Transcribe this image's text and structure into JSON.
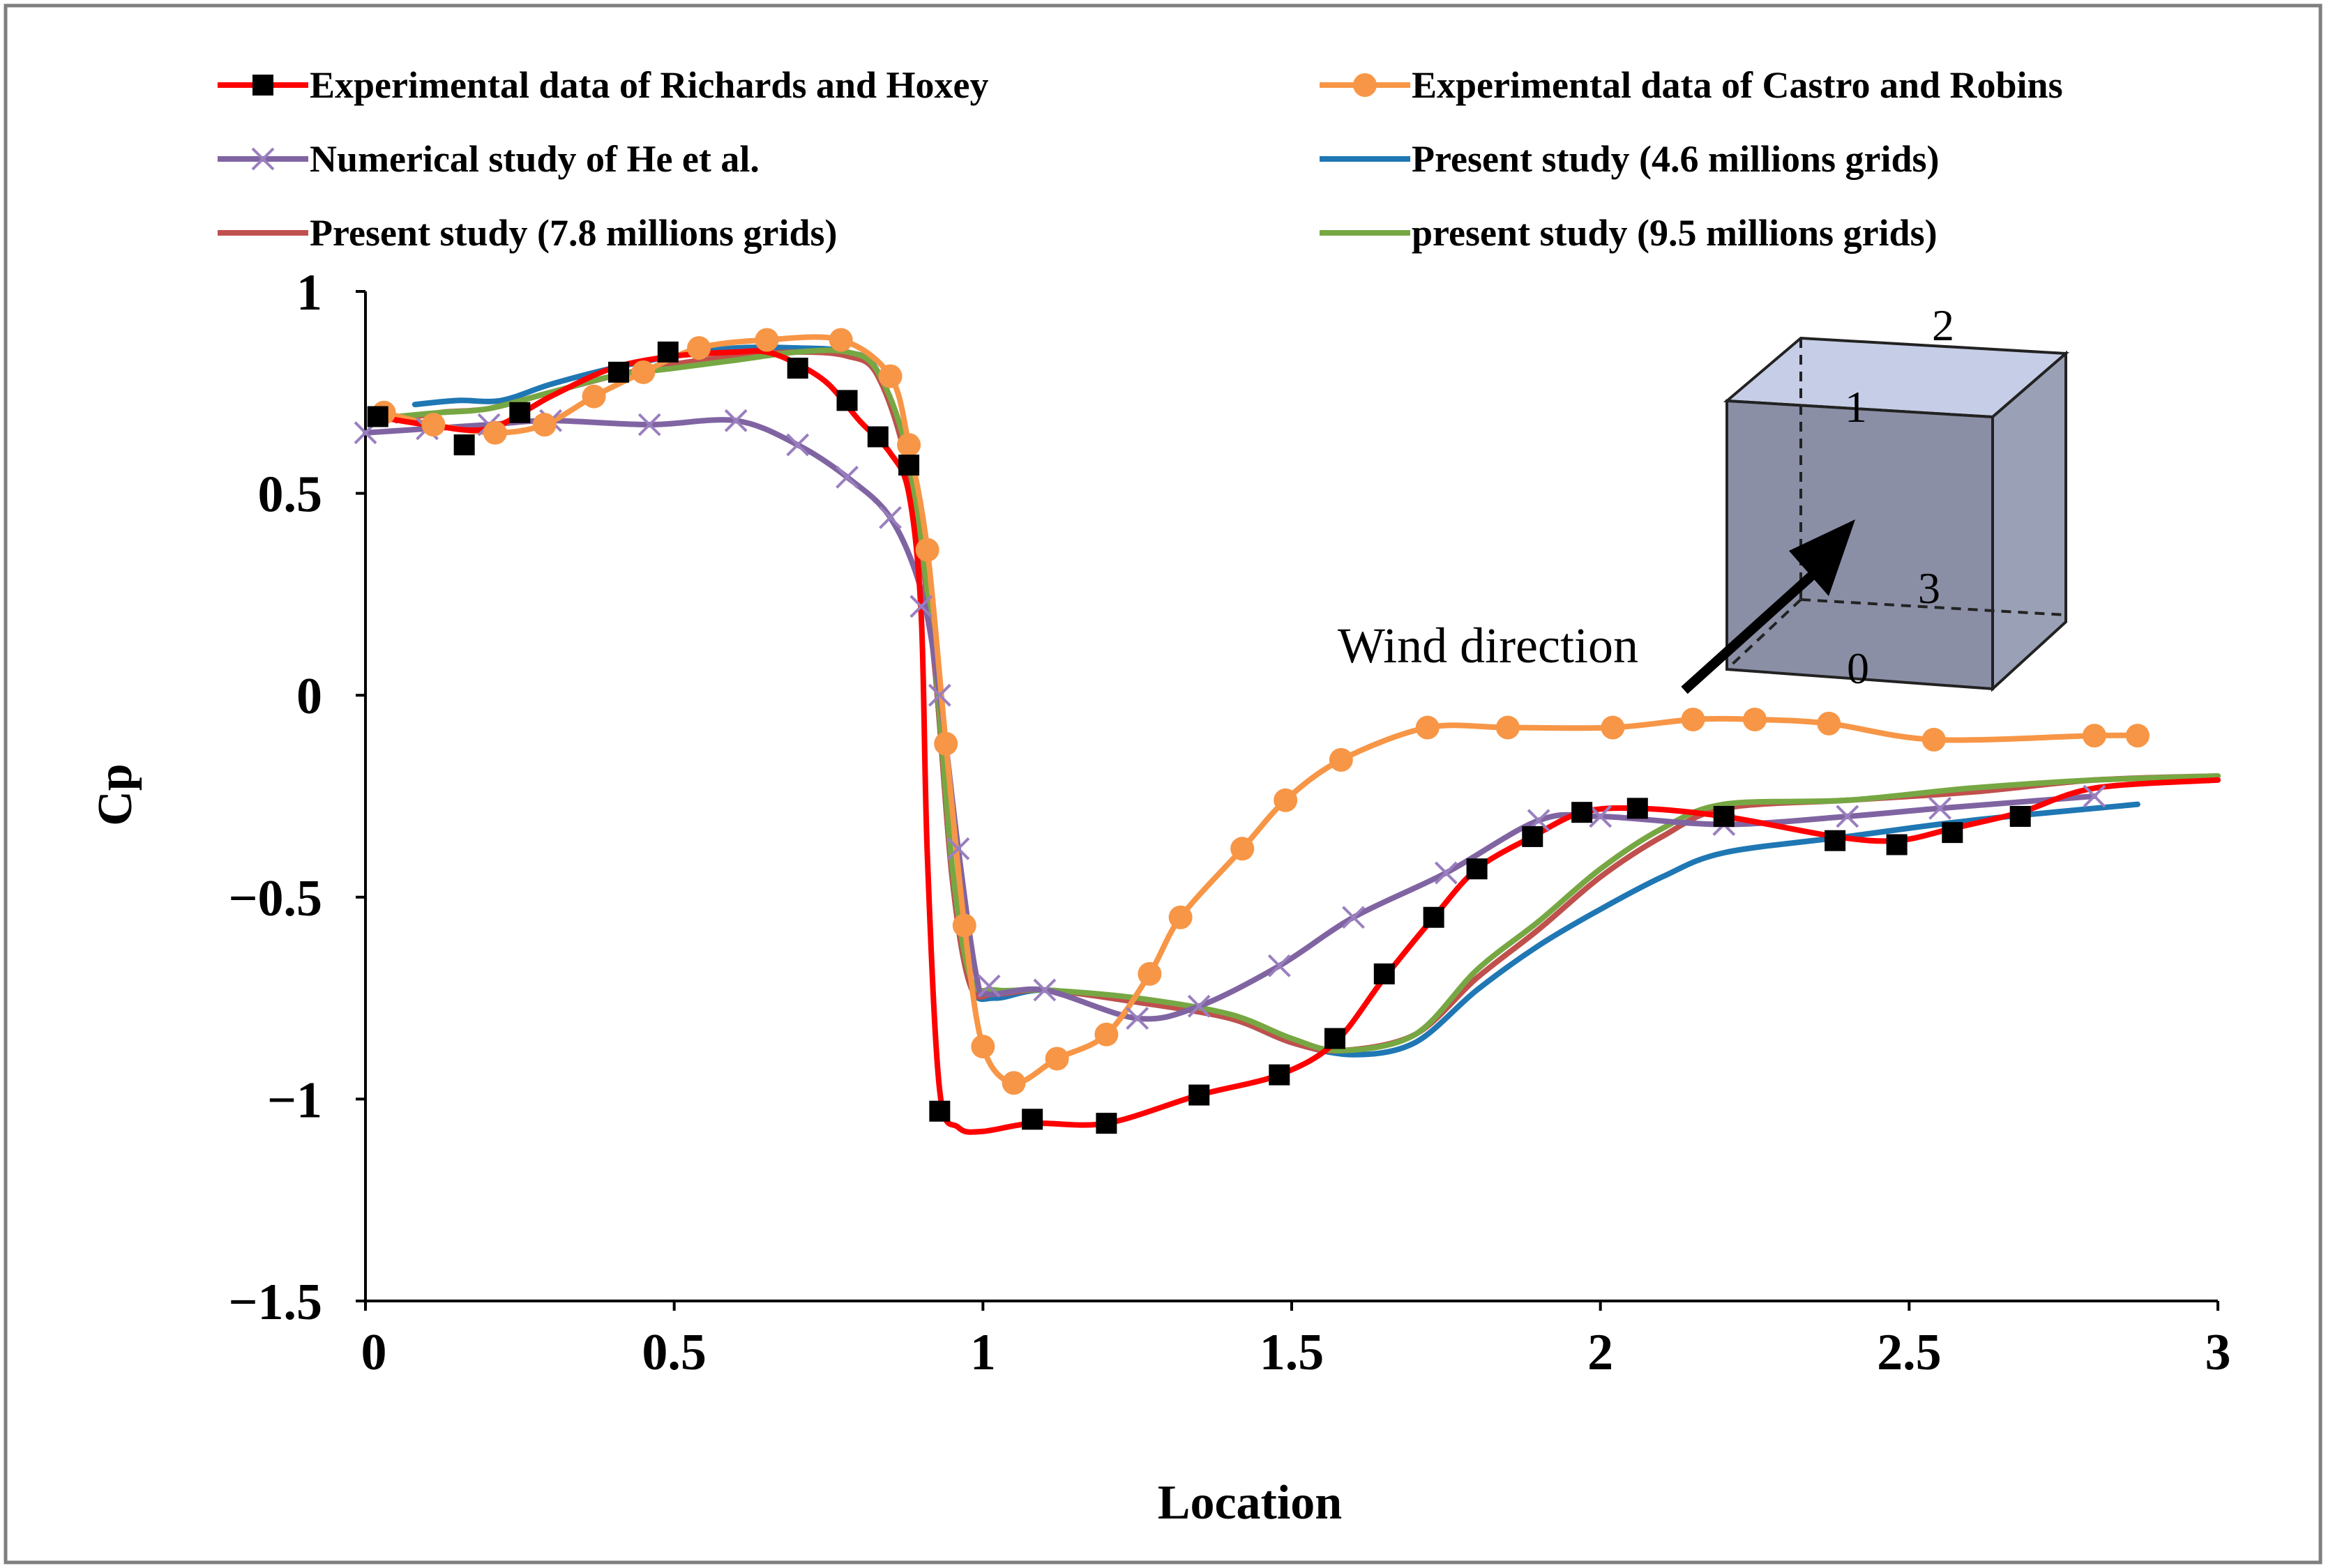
{
  "chart_data": {
    "type": "line",
    "xlabel": "Location",
    "ylabel": "Cp",
    "xlim": [
      0,
      3
    ],
    "ylim": [
      -1.5,
      1
    ],
    "xticks": [
      0,
      0.5,
      1,
      1.5,
      2,
      2.5,
      3
    ],
    "xtick_labels": [
      "0",
      "0.5",
      "1",
      "1.5",
      "2",
      "2.5",
      "3"
    ],
    "yticks": [
      1,
      0.5,
      0,
      -0.5,
      -1,
      -1.5
    ],
    "ytick_labels": [
      "1",
      "0.5",
      "0",
      "−0.5",
      "−1",
      "−1.5"
    ],
    "grid": false,
    "legend_position": "top",
    "annotation": {
      "text": "Wind direction",
      "cube_labels": [
        "2",
        "1",
        "3",
        "0"
      ]
    },
    "series": [
      {
        "name": "Experimental data of Richards and Hoxey",
        "color": "#ff0000",
        "marker": "square",
        "marker_color": "#000000",
        "x": [
          0.02,
          0.16,
          0.25,
          0.41,
          0.49,
          0.7,
          0.78,
          0.83,
          0.88,
          0.93,
          1.08,
          1.2,
          1.35,
          1.48,
          1.57,
          1.65,
          1.73,
          1.8,
          1.89,
          1.97,
          2.06,
          2.2,
          2.38,
          2.48,
          2.57,
          2.68
        ],
        "y": [
          0.69,
          0.62,
          0.7,
          0.8,
          0.85,
          0.81,
          0.73,
          0.64,
          0.57,
          -1.03,
          -1.05,
          -1.06,
          -0.99,
          -0.94,
          -0.85,
          -0.69,
          -0.55,
          -0.43,
          -0.35,
          -0.29,
          -0.28,
          -0.3,
          -0.36,
          -0.37,
          -0.34,
          -0.3
        ],
        "curve_x": [
          0.02,
          0.1,
          0.2,
          0.3,
          0.4,
          0.5,
          0.6,
          0.65,
          0.7,
          0.75,
          0.8,
          0.85,
          0.88,
          0.9,
          0.91,
          0.93,
          0.96,
          1.0,
          1.08,
          1.2,
          1.35,
          1.48,
          1.57,
          1.65,
          1.73,
          1.8,
          1.89,
          1.97,
          2.06,
          2.2,
          2.38,
          2.48,
          2.57,
          2.68,
          2.8,
          3.0
        ],
        "curve_y": [
          0.69,
          0.67,
          0.66,
          0.74,
          0.81,
          0.84,
          0.85,
          0.85,
          0.82,
          0.77,
          0.68,
          0.6,
          0.5,
          0.2,
          -0.4,
          -0.98,
          -1.07,
          -1.08,
          -1.06,
          -1.06,
          -0.99,
          -0.94,
          -0.86,
          -0.7,
          -0.55,
          -0.43,
          -0.35,
          -0.29,
          -0.28,
          -0.3,
          -0.35,
          -0.36,
          -0.33,
          -0.29,
          -0.23,
          -0.21
        ]
      },
      {
        "name": "Experimental data of Castro and Robins",
        "color": "#f79646",
        "marker": "circle",
        "marker_color": "#f79646",
        "x": [
          0.03,
          0.11,
          0.21,
          0.29,
          0.37,
          0.45,
          0.54,
          0.65,
          0.77,
          0.85,
          0.88,
          0.91,
          0.94,
          0.97,
          1.0,
          1.05,
          1.12,
          1.2,
          1.27,
          1.32,
          1.42,
          1.49,
          1.58,
          1.72,
          1.85,
          2.02,
          2.15,
          2.25,
          2.37,
          2.54,
          2.8,
          2.87
        ],
        "y": [
          0.7,
          0.67,
          0.65,
          0.67,
          0.74,
          0.8,
          0.86,
          0.88,
          0.88,
          0.79,
          0.62,
          0.36,
          -0.12,
          -0.57,
          -0.87,
          -0.96,
          -0.9,
          -0.84,
          -0.69,
          -0.55,
          -0.38,
          -0.26,
          -0.16,
          -0.08,
          -0.08,
          -0.08,
          -0.06,
          -0.06,
          -0.07,
          -0.11,
          -0.1,
          -0.1
        ]
      },
      {
        "name": "Numerical study of He et al.",
        "color": "#8064a2",
        "marker": "x",
        "marker_color": "#9a7fbf",
        "x": [
          0.0,
          0.1,
          0.2,
          0.3,
          0.46,
          0.6,
          0.7,
          0.78,
          0.85,
          0.9,
          0.93,
          0.96,
          1.01,
          1.1,
          1.25,
          1.35,
          1.48,
          1.6,
          1.75,
          1.9,
          2.0,
          2.2,
          2.4,
          2.55,
          2.8
        ],
        "y": [
          0.65,
          0.66,
          0.67,
          0.68,
          0.67,
          0.68,
          0.62,
          0.54,
          0.44,
          0.22,
          0.0,
          -0.38,
          -0.72,
          -0.73,
          -0.8,
          -0.77,
          -0.67,
          -0.55,
          -0.44,
          -0.31,
          -0.3,
          -0.32,
          -0.3,
          -0.28,
          -0.25
        ],
        "curve_x": [
          0.0,
          0.1,
          0.2,
          0.3,
          0.46,
          0.6,
          0.7,
          0.78,
          0.85,
          0.9,
          0.93,
          0.96,
          0.99,
          1.01,
          1.1,
          1.25,
          1.35,
          1.48,
          1.6,
          1.75,
          1.9,
          2.0,
          2.2,
          2.4,
          2.55,
          2.8
        ],
        "curve_y": [
          0.65,
          0.66,
          0.67,
          0.68,
          0.67,
          0.68,
          0.62,
          0.54,
          0.44,
          0.26,
          0.0,
          -0.38,
          -0.7,
          -0.74,
          -0.73,
          -0.8,
          -0.77,
          -0.67,
          -0.55,
          -0.44,
          -0.31,
          -0.3,
          -0.32,
          -0.3,
          -0.28,
          -0.25
        ]
      },
      {
        "name": "Present study (4.6 millions grids)",
        "color": "#1f77b4",
        "marker": "none",
        "x": [
          0.08,
          0.15,
          0.22,
          0.3,
          0.4,
          0.5,
          0.6,
          0.7,
          0.78,
          0.83,
          0.88,
          0.92,
          0.95,
          0.98,
          1.02,
          1.1,
          1.25,
          1.4,
          1.5,
          1.6,
          1.7,
          1.8,
          1.9,
          2.0,
          2.1,
          2.2,
          2.4,
          2.6,
          2.87
        ],
        "y": [
          0.72,
          0.73,
          0.73,
          0.77,
          0.81,
          0.84,
          0.86,
          0.86,
          0.85,
          0.8,
          0.55,
          0.1,
          -0.45,
          -0.72,
          -0.75,
          -0.73,
          -0.76,
          -0.8,
          -0.86,
          -0.89,
          -0.86,
          -0.73,
          -0.62,
          -0.53,
          -0.45,
          -0.39,
          -0.35,
          -0.31,
          -0.27
        ]
      },
      {
        "name": "Present study (7.8 millions grids)",
        "color": "#c0504d",
        "marker": "none",
        "x": [
          0.05,
          0.12,
          0.2,
          0.3,
          0.4,
          0.5,
          0.6,
          0.7,
          0.78,
          0.83,
          0.88,
          0.92,
          0.95,
          0.98,
          1.02,
          1.1,
          1.25,
          1.4,
          1.5,
          1.58,
          1.7,
          1.8,
          1.9,
          2.0,
          2.1,
          2.2,
          2.4,
          2.6,
          2.8,
          3.0
        ],
        "y": [
          0.68,
          0.7,
          0.71,
          0.75,
          0.79,
          0.82,
          0.84,
          0.85,
          0.84,
          0.79,
          0.55,
          0.1,
          -0.45,
          -0.72,
          -0.74,
          -0.73,
          -0.76,
          -0.8,
          -0.86,
          -0.88,
          -0.84,
          -0.7,
          -0.58,
          -0.45,
          -0.35,
          -0.28,
          -0.26,
          -0.24,
          -0.21,
          -0.2
        ]
      },
      {
        "name": "present study (9.5 millions grids)",
        "color": "#77a743",
        "marker": "none",
        "x": [
          0.05,
          0.12,
          0.2,
          0.3,
          0.4,
          0.5,
          0.6,
          0.7,
          0.78,
          0.83,
          0.88,
          0.92,
          0.95,
          0.98,
          1.02,
          1.1,
          1.25,
          1.4,
          1.5,
          1.58,
          1.7,
          1.8,
          1.9,
          2.0,
          2.1,
          2.2,
          2.4,
          2.6,
          2.8,
          3.0
        ],
        "y": [
          0.69,
          0.7,
          0.71,
          0.75,
          0.79,
          0.81,
          0.83,
          0.85,
          0.85,
          0.8,
          0.58,
          0.12,
          -0.42,
          -0.7,
          -0.73,
          -0.73,
          -0.75,
          -0.79,
          -0.85,
          -0.88,
          -0.84,
          -0.68,
          -0.56,
          -0.43,
          -0.33,
          -0.27,
          -0.26,
          -0.23,
          -0.21,
          -0.2
        ]
      }
    ]
  }
}
